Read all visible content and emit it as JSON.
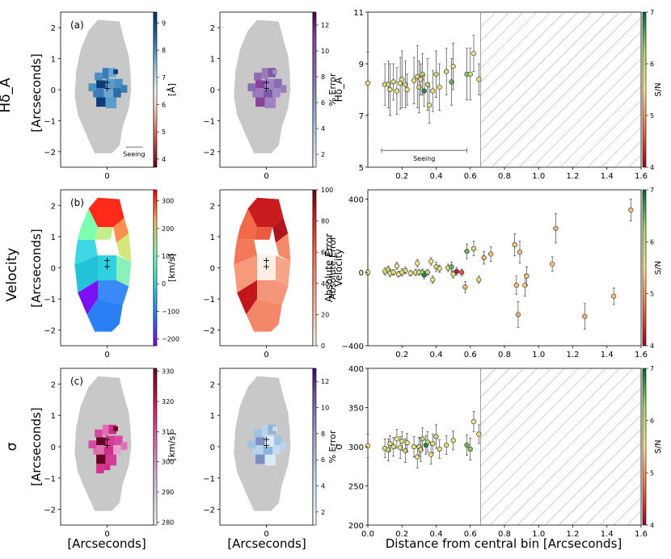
{
  "figure": {
    "row_labels": [
      "Hδ_A",
      "Velocity",
      "σ"
    ],
    "map_ylabel": "[Arcseconds]",
    "map_xlabel": "[Arcseconds]",
    "scatter_xlabel": "Distance from central bin [Arcseconds]",
    "panel_letters": [
      "(a)",
      "(b)",
      "(c)"
    ],
    "seeing_label": "Seeing",
    "colors": {
      "mask_gray": "#c8c8c8",
      "sn_low": "#a50026",
      "sn_mid": "#fee08b",
      "sn_high": "#006837",
      "hatch": "#888888"
    }
  },
  "chart_data": [
    {
      "type": "heatmap",
      "name": "hda-map",
      "panel": "(a)",
      "colormap": "RdBu_r",
      "colorbar_label": "[Å]",
      "colorbar_ticks": [
        "4",
        "5",
        "6",
        "7",
        "8",
        "9"
      ],
      "colorbar_range": [
        3.7,
        9.4
      ],
      "xticks": [
        "0"
      ],
      "yticks": [
        "2",
        "1",
        "0",
        "−1",
        "−2"
      ]
    },
    {
      "type": "heatmap",
      "name": "hda-error-map",
      "colormap": "Purples",
      "colorbar_label": "% Error",
      "colorbar_ticks": [
        "2",
        "4",
        "6",
        "8",
        "10",
        "12"
      ],
      "colorbar_range": [
        1,
        13
      ],
      "xticks": [
        "0"
      ],
      "yticks": [
        "2",
        "1",
        "0",
        "−1",
        "−2"
      ]
    },
    {
      "type": "scatter",
      "name": "hda-profile",
      "ylabel": "Hδ_A",
      "xlim": [
        0,
        1.6
      ],
      "ylim": [
        5,
        11
      ],
      "xticks": [
        "0.2",
        "0.4",
        "0.6",
        "0.8",
        "1.0",
        "1.2",
        "1.4",
        "1.6"
      ],
      "yticks": [
        "5",
        "7",
        "9",
        "11"
      ],
      "hatch_from": 0.66,
      "seeing_bar": [
        0.08,
        0.58
      ],
      "colorbar_label": "S/N",
      "colorbar_ticks": [
        "4",
        "5",
        "6",
        "7"
      ],
      "points": [
        [
          0.0,
          8.25,
          1.2,
          5.6
        ],
        [
          0.1,
          8.2,
          0.8,
          5.8
        ],
        [
          0.12,
          8.2,
          0.9,
          5.9
        ],
        [
          0.13,
          8.0,
          1.0,
          5.7
        ],
        [
          0.15,
          8.3,
          0.7,
          5.8
        ],
        [
          0.17,
          7.95,
          0.9,
          5.6
        ],
        [
          0.19,
          8.25,
          1.0,
          5.5
        ],
        [
          0.2,
          8.4,
          1.1,
          5.8
        ],
        [
          0.22,
          8.2,
          0.9,
          5.9
        ],
        [
          0.23,
          8.0,
          0.6,
          5.6
        ],
        [
          0.27,
          8.35,
          0.9,
          5.7
        ],
        [
          0.29,
          8.5,
          1.2,
          5.8
        ],
        [
          0.3,
          8.1,
          1.0,
          5.9
        ],
        [
          0.31,
          8.4,
          0.6,
          5.6
        ],
        [
          0.32,
          8.6,
          0.8,
          6.2
        ],
        [
          0.33,
          7.95,
          0.6,
          6.8
        ],
        [
          0.35,
          8.2,
          1.0,
          6.1
        ],
        [
          0.36,
          7.4,
          0.7,
          5.6
        ],
        [
          0.38,
          7.95,
          0.8,
          5.7
        ],
        [
          0.4,
          8.6,
          0.9,
          6.0
        ],
        [
          0.42,
          8.1,
          0.9,
          5.7
        ],
        [
          0.46,
          8.7,
          0.9,
          5.8
        ],
        [
          0.49,
          8.3,
          0.9,
          6.5
        ],
        [
          0.5,
          8.9,
          0.9,
          5.7
        ],
        [
          0.58,
          8.6,
          1.0,
          6.4
        ],
        [
          0.6,
          8.6,
          1.0,
          5.9
        ],
        [
          0.62,
          9.4,
          0.7,
          5.5
        ],
        [
          0.65,
          8.4,
          0.6,
          5.7
        ]
      ]
    },
    {
      "type": "heatmap",
      "name": "velocity-map",
      "panel": "(b)",
      "colormap": "rainbow",
      "colorbar_label": "[km/s]",
      "colorbar_ticks": [
        "−200",
        "−100",
        "0",
        "100",
        "200",
        "300"
      ],
      "colorbar_range": [
        -225,
        340
      ],
      "xticks": [
        "0"
      ],
      "yticks": [
        "2",
        "1",
        "0",
        "−1",
        "−2"
      ]
    },
    {
      "type": "heatmap",
      "name": "velocity-error-map",
      "colormap": "Reds",
      "colorbar_label": "Absolute Error",
      "colorbar_ticks": [
        "0",
        "20",
        "40",
        "60",
        "80",
        "100"
      ],
      "colorbar_range": [
        0,
        100
      ],
      "xticks": [
        "0"
      ],
      "yticks": [
        "2",
        "1",
        "0",
        "−1",
        "−2"
      ]
    },
    {
      "type": "scatter",
      "name": "velocity-profile",
      "ylabel": "Velocity",
      "xlim": [
        0,
        1.6
      ],
      "ylim": [
        -400,
        450
      ],
      "xticks": [
        "0.2",
        "0.4",
        "0.6",
        "0.8",
        "1.0",
        "1.2",
        "1.4",
        "1.6"
      ],
      "yticks": [
        "−400",
        "0",
        "400"
      ],
      "colorbar_label": "S/N",
      "colorbar_ticks": [
        "4",
        "5",
        "6",
        "7"
      ],
      "points": [
        [
          0.0,
          0,
          15,
          5.6
        ],
        [
          0.1,
          5,
          20,
          5.8
        ],
        [
          0.12,
          15,
          18,
          5.9
        ],
        [
          0.13,
          -5,
          20,
          5.7
        ],
        [
          0.15,
          0,
          15,
          5.8
        ],
        [
          0.17,
          35,
          20,
          5.6
        ],
        [
          0.18,
          -10,
          15,
          5.5
        ],
        [
          0.2,
          0,
          20,
          5.8
        ],
        [
          0.22,
          10,
          18,
          5.9
        ],
        [
          0.25,
          -5,
          15,
          5.6
        ],
        [
          0.28,
          0,
          18,
          5.7
        ],
        [
          0.29,
          50,
          20,
          5.5
        ],
        [
          0.3,
          0,
          15,
          5.9
        ],
        [
          0.32,
          0,
          18,
          6.2
        ],
        [
          0.33,
          -15,
          20,
          6.8
        ],
        [
          0.35,
          0,
          15,
          6.1
        ],
        [
          0.37,
          60,
          20,
          5.6
        ],
        [
          0.38,
          -40,
          20,
          5.7
        ],
        [
          0.4,
          30,
          25,
          6.0
        ],
        [
          0.42,
          20,
          20,
          5.7
        ],
        [
          0.47,
          25,
          20,
          5.8
        ],
        [
          0.49,
          30,
          25,
          6.5
        ],
        [
          0.5,
          -10,
          20,
          5.7
        ],
        [
          0.52,
          5,
          20,
          4.2
        ],
        [
          0.55,
          0,
          18,
          4.6
        ],
        [
          0.57,
          -80,
          30,
          5.2
        ],
        [
          0.58,
          115,
          40,
          6.5
        ],
        [
          0.62,
          130,
          40,
          5.9
        ],
        [
          0.65,
          -40,
          20,
          5.7
        ],
        [
          0.68,
          80,
          35,
          5.2
        ],
        [
          0.72,
          100,
          40,
          5.3
        ],
        [
          0.86,
          150,
          60,
          5.3
        ],
        [
          0.87,
          -70,
          50,
          5.3
        ],
        [
          0.88,
          -230,
          70,
          5.2
        ],
        [
          0.89,
          110,
          60,
          5.3
        ],
        [
          0.92,
          -70,
          60,
          5.4
        ],
        [
          0.93,
          -20,
          50,
          5.3
        ],
        [
          1.08,
          45,
          40,
          5.4
        ],
        [
          1.1,
          240,
          80,
          5.2
        ],
        [
          1.27,
          -240,
          70,
          5.2
        ],
        [
          1.44,
          -130,
          45,
          5.3
        ],
        [
          1.54,
          340,
          60,
          5.3
        ]
      ]
    },
    {
      "type": "heatmap",
      "name": "sigma-map",
      "panel": "(c)",
      "colormap": "PuRd",
      "colorbar_label": "[km/s]",
      "colorbar_ticks": [
        "280",
        "290",
        "300",
        "310",
        "320",
        "330"
      ],
      "colorbar_range": [
        279,
        331
      ],
      "xticks": [
        "0"
      ],
      "yticks": [
        "2",
        "1",
        "0",
        "−1",
        "−2"
      ]
    },
    {
      "type": "heatmap",
      "name": "sigma-error-map",
      "colormap": "Blues",
      "colorbar_label": "% Error",
      "colorbar_ticks": [
        "2",
        "4",
        "6",
        "8",
        "10",
        "12"
      ],
      "colorbar_range": [
        1,
        13
      ],
      "xticks": [
        "0"
      ],
      "yticks": [
        "2",
        "1",
        "0",
        "−1",
        "−2"
      ]
    },
    {
      "type": "scatter",
      "name": "sigma-profile",
      "ylabel": "σ",
      "xlim": [
        0,
        1.6
      ],
      "ylim": [
        200,
        400
      ],
      "xticks": [
        "0.0",
        "0.2",
        "0.4",
        "0.6",
        "0.8",
        "1.0",
        "1.2",
        "1.4",
        "1.6"
      ],
      "yticks": [
        "200",
        "250",
        "300",
        "350",
        "400"
      ],
      "hatch_from": 0.66,
      "colorbar_label": "S/N",
      "colorbar_ticks": [
        "4",
        "5",
        "6",
        "7"
      ],
      "points": [
        [
          0.0,
          301,
          15,
          5.6
        ],
        [
          0.1,
          298,
          12,
          5.8
        ],
        [
          0.12,
          296,
          14,
          5.9
        ],
        [
          0.13,
          304,
          10,
          5.7
        ],
        [
          0.15,
          300,
          12,
          5.8
        ],
        [
          0.17,
          310,
          12,
          5.6
        ],
        [
          0.19,
          299,
          14,
          5.5
        ],
        [
          0.2,
          307,
          12,
          5.8
        ],
        [
          0.22,
          295,
          15,
          5.9
        ],
        [
          0.23,
          305,
          12,
          5.6
        ],
        [
          0.27,
          300,
          13,
          5.7
        ],
        [
          0.29,
          287,
          14,
          5.5
        ],
        [
          0.3,
          300,
          12,
          5.9
        ],
        [
          0.31,
          296,
          15,
          5.6
        ],
        [
          0.32,
          310,
          14,
          6.2
        ],
        [
          0.34,
          302,
          12,
          6.8
        ],
        [
          0.35,
          306,
          13,
          6.1
        ],
        [
          0.37,
          290,
          12,
          5.6
        ],
        [
          0.38,
          304,
          12,
          5.7
        ],
        [
          0.4,
          313,
          15,
          6.0
        ],
        [
          0.42,
          297,
          12,
          5.7
        ],
        [
          0.46,
          302,
          12,
          5.8
        ],
        [
          0.5,
          308,
          12,
          5.7
        ],
        [
          0.58,
          302,
          13,
          6.5
        ],
        [
          0.6,
          297,
          14,
          6.4
        ],
        [
          0.62,
          332,
          13,
          5.5
        ],
        [
          0.65,
          316,
          12,
          5.7
        ]
      ]
    }
  ]
}
